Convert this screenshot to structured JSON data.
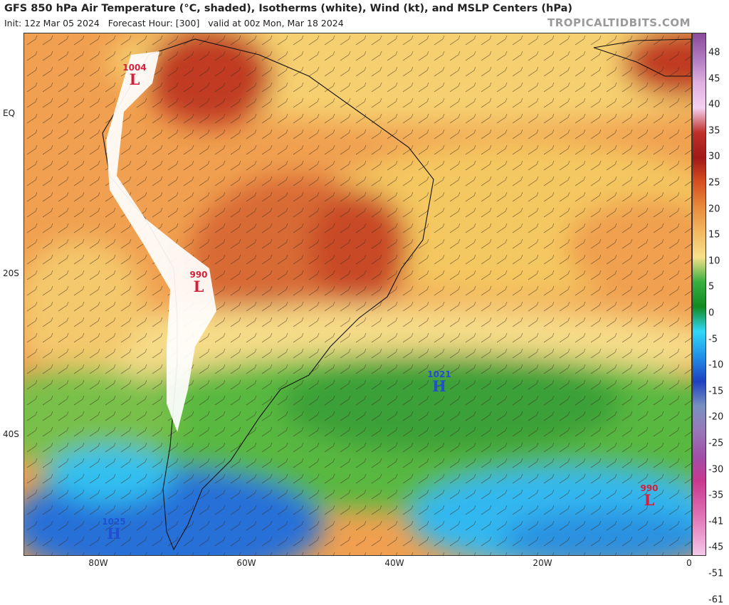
{
  "header": {
    "title": "GFS 850 hPa Air Temperature (°C, shaded), Isotherms (white), Wind (kt), and MSLP Centers (hPa)",
    "init": "Init: 12z Mar 05 2024",
    "forecast_hour": "Forecast Hour: [300]",
    "valid": "valid at 00z Mon, Mar 18 2024",
    "brand": "TROPICALTIDBITS.COM"
  },
  "axes": {
    "lat_labels": [
      "EQ",
      "20S",
      "40S"
    ],
    "lon_labels": [
      "80W",
      "60W",
      "40W",
      "20W",
      "0"
    ]
  },
  "colorbar": {
    "labels": [
      "48",
      "45",
      "40",
      "35",
      "30",
      "25",
      "20",
      "15",
      "10",
      "5",
      "0",
      "-5",
      "-10",
      "-15",
      "-20",
      "-25",
      "-30",
      "-35",
      "-41",
      "-45",
      "-51",
      "-61"
    ],
    "colors": [
      "#8a4a9a",
      "#b07ac0",
      "#e0b0e0",
      "#f4d0f0",
      "#c0302a",
      "#a01818",
      "#d85020",
      "#e88a3c",
      "#f4b860",
      "#f6e08a",
      "#3ab040",
      "#108a20",
      "#30d8f8",
      "#2090e8",
      "#1e40c0",
      "#7890c0",
      "#9878b8",
      "#a050a8",
      "#c83890",
      "#d860a8",
      "#e890c8",
      "#f4c8e8"
    ]
  },
  "pressure_centers": [
    {
      "type": "L",
      "value": "1004"
    },
    {
      "type": "L",
      "value": "990"
    },
    {
      "type": "H",
      "value": "1021"
    },
    {
      "type": "L",
      "value": "990"
    },
    {
      "type": "H",
      "value": "1025"
    }
  ],
  "legend_colors": {
    "hot": "#c0302a",
    "warm": "#e88a3c",
    "mild": "#f6e08a",
    "cool": "#3ab040",
    "cold": "#30d8f8",
    "colder": "#1e40c0",
    "terrain_mask": "#ffffff"
  }
}
